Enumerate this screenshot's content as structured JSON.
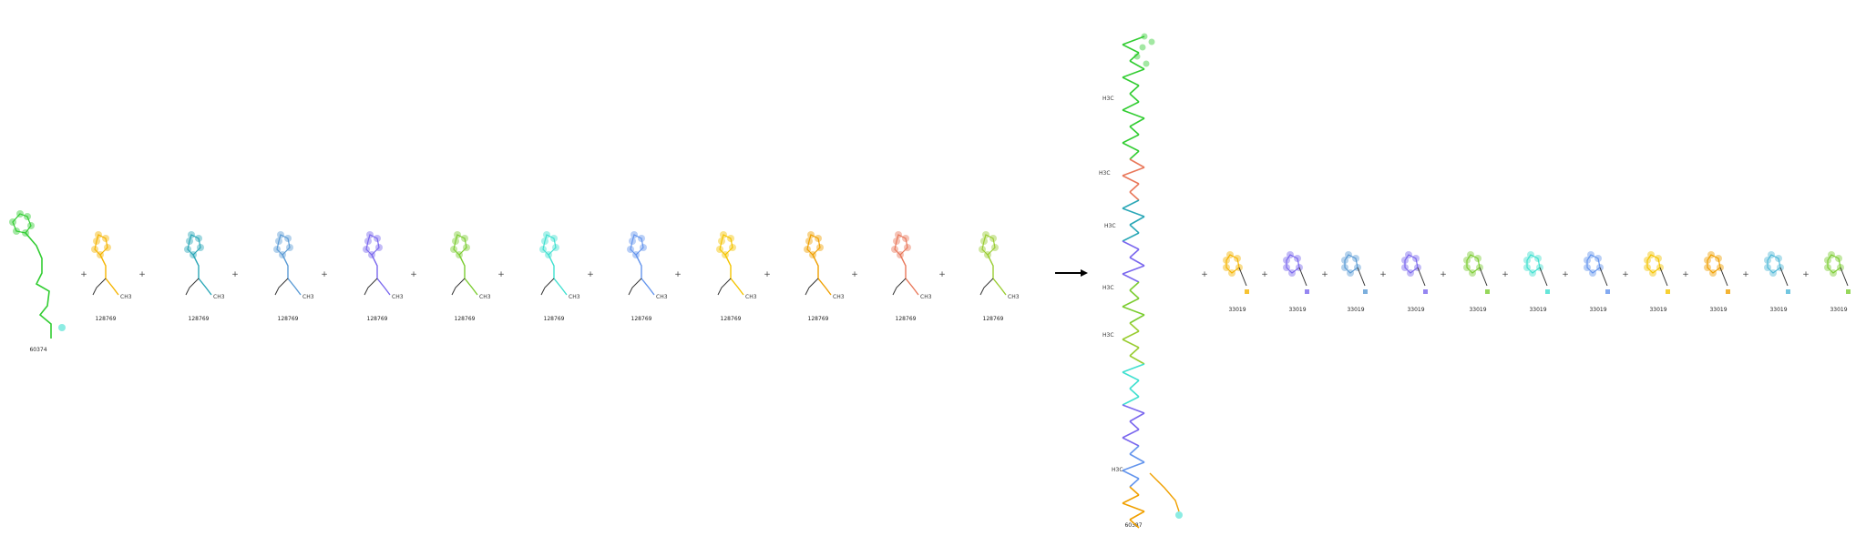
{
  "reactants": [
    {
      "id": "60374",
      "color": "#32cd32"
    },
    {
      "id": "128769",
      "color": "#f5b400"
    },
    {
      "id": "128769",
      "color": "#2aa7b7"
    },
    {
      "id": "128769",
      "color": "#5b9bd5"
    },
    {
      "id": "128769",
      "color": "#7b68ee"
    },
    {
      "id": "128769",
      "color": "#7ccd32"
    },
    {
      "id": "128769",
      "color": "#40e0d0"
    },
    {
      "id": "128769",
      "color": "#6495ed"
    },
    {
      "id": "128769",
      "color": "#f5c400"
    },
    {
      "id": "128769",
      "color": "#f0a000"
    },
    {
      "id": "128769",
      "color": "#e9785a"
    },
    {
      "id": "128769",
      "color": "#9acd32"
    }
  ],
  "product_main": {
    "id": "60387"
  },
  "products": [
    {
      "id": "33019",
      "color": "#f5b400"
    },
    {
      "id": "33019",
      "color": "#7b68ee"
    },
    {
      "id": "33019",
      "color": "#5b9bd5"
    },
    {
      "id": "33019",
      "color": "#7b68ee"
    },
    {
      "id": "33019",
      "color": "#7ccd32"
    },
    {
      "id": "33019",
      "color": "#40e0d0"
    },
    {
      "id": "33019",
      "color": "#6495ed"
    },
    {
      "id": "33019",
      "color": "#f5c400"
    },
    {
      "id": "33019",
      "color": "#f0a000"
    },
    {
      "id": "33019",
      "color": "#4fb8d8"
    },
    {
      "id": "33019",
      "color": "#7ccd32"
    }
  ],
  "plus_sign": "+",
  "atom_labels": {
    "methyl": "CH3",
    "methyl_left": "H3C",
    "oh": "OH"
  }
}
